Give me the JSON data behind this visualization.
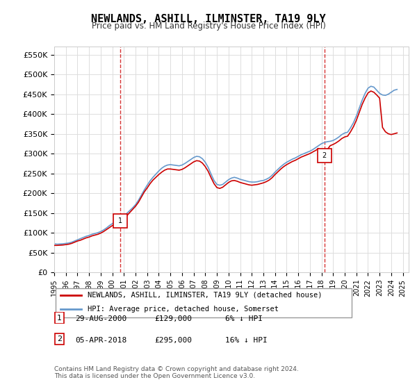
{
  "title": "NEWLANDS, ASHILL, ILMINSTER, TA19 9LY",
  "subtitle": "Price paid vs. HM Land Registry's House Price Index (HPI)",
  "ylabel": "",
  "xlabel": "",
  "ylim": [
    0,
    570000
  ],
  "yticks": [
    0,
    50000,
    100000,
    150000,
    200000,
    250000,
    300000,
    350000,
    400000,
    450000,
    500000,
    550000
  ],
  "ytick_labels": [
    "£0",
    "£50K",
    "£100K",
    "£150K",
    "£200K",
    "£250K",
    "£300K",
    "£350K",
    "£400K",
    "£450K",
    "£500K",
    "£550K"
  ],
  "xlim_start": 1995.0,
  "xlim_end": 2025.5,
  "sale1_x": 2000.66,
  "sale1_y": 129000,
  "sale1_label": "1",
  "sale1_date": "29-AUG-2000",
  "sale1_price": "£129,000",
  "sale1_hpi": "6% ↓ HPI",
  "sale2_x": 2018.25,
  "sale2_y": 295000,
  "sale2_label": "2",
  "sale2_date": "05-APR-2018",
  "sale2_price": "£295,000",
  "sale2_hpi": "16% ↓ HPI",
  "line_color_red": "#cc0000",
  "line_color_blue": "#6699cc",
  "vline_color": "#cc0000",
  "background_color": "#ffffff",
  "grid_color": "#dddddd",
  "legend1": "NEWLANDS, ASHILL, ILMINSTER, TA19 9LY (detached house)",
  "legend2": "HPI: Average price, detached house, Somerset",
  "footer": "Contains HM Land Registry data © Crown copyright and database right 2024.\nThis data is licensed under the Open Government Licence v3.0.",
  "hpi_data_x": [
    1995.0,
    1995.25,
    1995.5,
    1995.75,
    1996.0,
    1996.25,
    1996.5,
    1996.75,
    1997.0,
    1997.25,
    1997.5,
    1997.75,
    1998.0,
    1998.25,
    1998.5,
    1998.75,
    1999.0,
    1999.25,
    1999.5,
    1999.75,
    2000.0,
    2000.25,
    2000.5,
    2000.75,
    2001.0,
    2001.25,
    2001.5,
    2001.75,
    2002.0,
    2002.25,
    2002.5,
    2002.75,
    2003.0,
    2003.25,
    2003.5,
    2003.75,
    2004.0,
    2004.25,
    2004.5,
    2004.75,
    2005.0,
    2005.25,
    2005.5,
    2005.75,
    2006.0,
    2006.25,
    2006.5,
    2006.75,
    2007.0,
    2007.25,
    2007.5,
    2007.75,
    2008.0,
    2008.25,
    2008.5,
    2008.75,
    2009.0,
    2009.25,
    2009.5,
    2009.75,
    2010.0,
    2010.25,
    2010.5,
    2010.75,
    2011.0,
    2011.25,
    2011.5,
    2011.75,
    2012.0,
    2012.25,
    2012.5,
    2012.75,
    2013.0,
    2013.25,
    2013.5,
    2013.75,
    2014.0,
    2014.25,
    2014.5,
    2014.75,
    2015.0,
    2015.25,
    2015.5,
    2015.75,
    2016.0,
    2016.25,
    2016.5,
    2016.75,
    2017.0,
    2017.25,
    2017.5,
    2017.75,
    2018.0,
    2018.25,
    2018.5,
    2018.75,
    2019.0,
    2019.25,
    2019.5,
    2019.75,
    2020.0,
    2020.25,
    2020.5,
    2020.75,
    2021.0,
    2021.25,
    2021.5,
    2021.75,
    2022.0,
    2022.25,
    2022.5,
    2022.75,
    2023.0,
    2023.25,
    2023.5,
    2023.75,
    2024.0,
    2024.25,
    2024.5
  ],
  "hpi_data_y": [
    72000,
    71000,
    71500,
    72000,
    73000,
    74000,
    76000,
    79000,
    82000,
    85000,
    88000,
    91000,
    93000,
    96000,
    98000,
    100000,
    103000,
    107000,
    112000,
    118000,
    123000,
    128000,
    133000,
    138000,
    143000,
    149000,
    156000,
    163000,
    171000,
    182000,
    195000,
    208000,
    220000,
    231000,
    240000,
    248000,
    256000,
    263000,
    268000,
    271000,
    272000,
    271000,
    270000,
    269000,
    271000,
    275000,
    280000,
    285000,
    290000,
    293000,
    292000,
    287000,
    278000,
    265000,
    248000,
    232000,
    222000,
    220000,
    222000,
    228000,
    234000,
    238000,
    240000,
    238000,
    235000,
    233000,
    231000,
    229000,
    228000,
    228000,
    229000,
    231000,
    232000,
    235000,
    239000,
    245000,
    253000,
    260000,
    267000,
    273000,
    278000,
    282000,
    286000,
    289000,
    293000,
    297000,
    300000,
    303000,
    306000,
    310000,
    315000,
    320000,
    325000,
    328000,
    330000,
    331000,
    333000,
    337000,
    342000,
    348000,
    352000,
    354000,
    365000,
    378000,
    395000,
    415000,
    435000,
    452000,
    465000,
    470000,
    468000,
    460000,
    452000,
    448000,
    447000,
    450000,
    455000,
    460000,
    462000
  ],
  "price_data_x": [
    1995.0,
    1995.25,
    1995.5,
    1995.75,
    1996.0,
    1996.25,
    1996.5,
    1996.75,
    1997.0,
    1997.25,
    1997.5,
    1997.75,
    1998.0,
    1998.25,
    1998.5,
    1998.75,
    1999.0,
    1999.25,
    1999.5,
    1999.75,
    2000.0,
    2000.25,
    2000.5,
    2000.75,
    2001.0,
    2001.25,
    2001.5,
    2001.75,
    2002.0,
    2002.25,
    2002.5,
    2002.75,
    2003.0,
    2003.25,
    2003.5,
    2003.75,
    2004.0,
    2004.25,
    2004.5,
    2004.75,
    2005.0,
    2005.25,
    2005.5,
    2005.75,
    2006.0,
    2006.25,
    2006.5,
    2006.75,
    2007.0,
    2007.25,
    2007.5,
    2007.75,
    2008.0,
    2008.25,
    2008.5,
    2008.75,
    2009.0,
    2009.25,
    2009.5,
    2009.75,
    2010.0,
    2010.25,
    2010.5,
    2010.75,
    2011.0,
    2011.25,
    2011.5,
    2011.75,
    2012.0,
    2012.25,
    2012.5,
    2012.75,
    2013.0,
    2013.25,
    2013.5,
    2013.75,
    2014.0,
    2014.25,
    2014.5,
    2014.75,
    2015.0,
    2015.25,
    2015.5,
    2015.75,
    2016.0,
    2016.25,
    2016.5,
    2016.75,
    2017.0,
    2017.25,
    2017.5,
    2017.75,
    2018.0,
    2018.25,
    2018.5,
    2018.75,
    2019.0,
    2019.25,
    2019.5,
    2019.75,
    2020.0,
    2020.25,
    2020.5,
    2020.75,
    2021.0,
    2021.25,
    2021.5,
    2021.75,
    2022.0,
    2022.25,
    2022.5,
    2022.75,
    2023.0,
    2023.25,
    2023.5,
    2023.75,
    2024.0,
    2024.25,
    2024.5
  ],
  "price_data_y": [
    68000,
    68000,
    68500,
    69000,
    70000,
    71000,
    73000,
    76000,
    79000,
    81000,
    84000,
    87000,
    89000,
    92000,
    94000,
    96000,
    99000,
    103000,
    108000,
    113000,
    118000,
    122000,
    127000,
    129000,
    136000,
    143000,
    151000,
    159000,
    167000,
    177000,
    190000,
    203000,
    213000,
    224000,
    233000,
    240000,
    247000,
    253000,
    258000,
    261000,
    261000,
    260000,
    259000,
    258000,
    260000,
    264000,
    269000,
    274000,
    279000,
    282000,
    281000,
    276000,
    267000,
    255000,
    239000,
    224000,
    214000,
    212000,
    215000,
    221000,
    227000,
    231000,
    232000,
    230000,
    227000,
    225000,
    223000,
    221000,
    220000,
    221000,
    222000,
    224000,
    226000,
    229000,
    233000,
    239000,
    247000,
    254000,
    261000,
    267000,
    272000,
    276000,
    280000,
    283000,
    287000,
    291000,
    294000,
    297000,
    300000,
    304000,
    308000,
    313000,
    295000,
    295000,
    310000,
    320000,
    323000,
    327000,
    332000,
    338000,
    342000,
    344000,
    355000,
    368000,
    384000,
    404000,
    424000,
    440000,
    453000,
    458000,
    455000,
    448000,
    440000,
    366000,
    355000,
    350000,
    348000,
    350000,
    352000
  ]
}
